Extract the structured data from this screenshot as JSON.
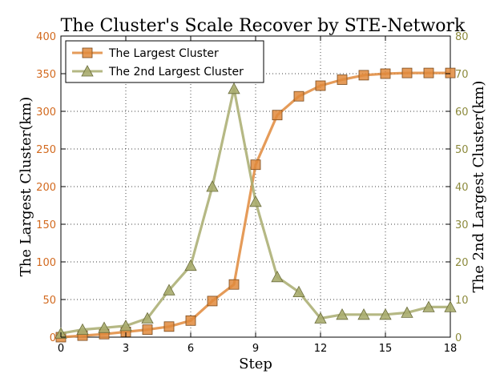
{
  "chart_data": {
    "type": "line",
    "title": "The Cluster's Scale Recover by STE-Network",
    "xlabel": "Step",
    "ylabel_left": "The Largest Cluster(km)",
    "ylabel_right": "The 2nd Largest Cluster(km)",
    "xlim": [
      0,
      18
    ],
    "ylim_left": [
      0,
      400
    ],
    "ylim_right": [
      0,
      80
    ],
    "xticks": [
      "0",
      "3",
      "6",
      "9",
      "12",
      "15",
      "18"
    ],
    "yticks_left": [
      "0",
      "50",
      "100",
      "150",
      "200",
      "250",
      "300",
      "350",
      "400"
    ],
    "yticks_right": [
      "0",
      "10",
      "20",
      "30",
      "40",
      "50",
      "60",
      "70",
      "80"
    ],
    "grid": true,
    "legend_position": "top-left",
    "x": [
      0,
      1,
      2,
      3,
      4,
      5,
      6,
      7,
      8,
      9,
      10,
      11,
      12,
      13,
      14,
      15,
      16,
      17,
      18
    ],
    "series": [
      {
        "name": "The Largest Cluster",
        "axis": "left",
        "marker": "square",
        "color": "#e08a3c",
        "values": [
          0,
          2,
          4,
          7,
          10,
          14,
          22,
          48,
          70,
          229,
          295,
          320,
          334,
          342,
          348,
          350,
          351,
          351,
          351
        ]
      },
      {
        "name": "The 2nd Largest Cluster",
        "axis": "right",
        "marker": "triangle",
        "color": "#a8ac6e",
        "values": [
          1,
          2,
          2.5,
          3,
          5,
          12.5,
          19,
          40,
          66,
          36,
          16,
          12,
          5,
          6,
          6,
          6,
          6.5,
          8,
          8
        ]
      }
    ]
  },
  "colors": {
    "left_axis": "#d2691e",
    "right_axis": "#8c8a3c"
  }
}
